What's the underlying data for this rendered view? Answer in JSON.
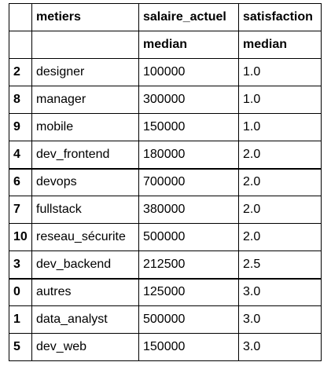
{
  "columns": {
    "index_header": "",
    "metiers": "metiers",
    "salaire_actuel": "salaire_actuel",
    "satisfaction": "satisfaction"
  },
  "subheader": {
    "index_header": "",
    "metiers": "",
    "salaire_actuel": "median",
    "satisfaction": "median"
  },
  "rows": [
    {
      "index": "2",
      "metiers": "designer",
      "salaire": "100000",
      "satisfaction": "1.0"
    },
    {
      "index": "8",
      "metiers": "manager",
      "salaire": "300000",
      "satisfaction": "1.0"
    },
    {
      "index": "9",
      "metiers": "mobile",
      "salaire": "150000",
      "satisfaction": "1.0"
    },
    {
      "index": "4",
      "metiers": "dev_frontend",
      "salaire": "180000",
      "satisfaction": "2.0"
    },
    {
      "index": "6",
      "metiers": "devops",
      "salaire": "700000",
      "satisfaction": "2.0"
    },
    {
      "index": "7",
      "metiers": "fullstack",
      "salaire": "380000",
      "satisfaction": "2.0"
    },
    {
      "index": "10",
      "metiers": "reseau_sécurite",
      "salaire": "500000",
      "satisfaction": "2.0"
    },
    {
      "index": "3",
      "metiers": "dev_backend",
      "salaire": "212500",
      "satisfaction": "2.5"
    },
    {
      "index": "0",
      "metiers": "autres",
      "salaire": "125000",
      "satisfaction": "3.0"
    },
    {
      "index": "1",
      "metiers": "data_analyst",
      "salaire": "500000",
      "satisfaction": "3.0"
    },
    {
      "index": "5",
      "metiers": "dev_web",
      "salaire": "150000",
      "satisfaction": "3.0"
    }
  ]
}
